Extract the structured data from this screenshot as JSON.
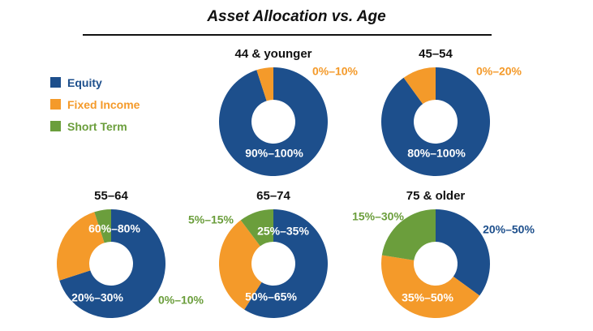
{
  "title": "Asset Allocation vs. Age",
  "colors": {
    "equity": "#1d4f8c",
    "fixed_income": "#f49a2a",
    "short_term": "#6b9e3c"
  },
  "legend": [
    {
      "label": "Equity",
      "color": "#1d4f8c"
    },
    {
      "label": "Fixed Income",
      "color": "#f49a2a"
    },
    {
      "label": "Short Term",
      "color": "#6b9e3c"
    }
  ],
  "chart_data": [
    {
      "type": "pie",
      "title": "44 & younger",
      "slices": [
        {
          "series": "Equity",
          "label": "90%–100%",
          "value": 95
        },
        {
          "series": "Fixed Income",
          "label": "0%–10%",
          "value": 5
        }
      ]
    },
    {
      "type": "pie",
      "title": "45–54",
      "slices": [
        {
          "series": "Equity",
          "label": "80%–100%",
          "value": 90
        },
        {
          "series": "Fixed Income",
          "label": "0%–20%",
          "value": 10
        }
      ]
    },
    {
      "type": "pie",
      "title": "55–64",
      "slices": [
        {
          "series": "Equity",
          "label": "60%–80%",
          "value": 70
        },
        {
          "series": "Fixed Income",
          "label": "20%–30%",
          "value": 25
        },
        {
          "series": "Short Term",
          "label": "0%–10%",
          "value": 5
        }
      ]
    },
    {
      "type": "pie",
      "title": "65–74",
      "slices": [
        {
          "series": "Equity",
          "label": "50%–65%",
          "value": 57.5
        },
        {
          "series": "Fixed Income",
          "label": "25%–35%",
          "value": 30
        },
        {
          "series": "Short Term",
          "label": "5%–15%",
          "value": 10
        }
      ]
    },
    {
      "type": "pie",
      "title": "75 & older",
      "slices": [
        {
          "series": "Equity",
          "label": "20%–50%",
          "value": 35
        },
        {
          "series": "Fixed Income",
          "label": "35%–50%",
          "value": 42.5
        },
        {
          "series": "Short Term",
          "label": "15%–30%",
          "value": 22.5
        }
      ]
    }
  ]
}
